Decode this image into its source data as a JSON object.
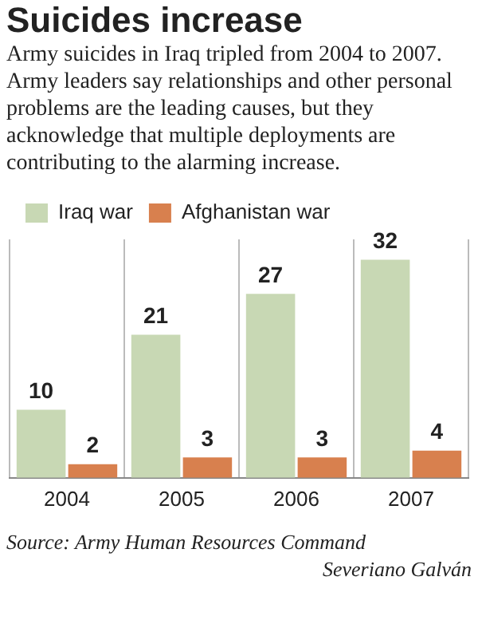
{
  "chart_data": {
    "type": "bar",
    "title": "Suicides increase",
    "subtitle": "Army suicides in Iraq tripled from 2004 to 2007. Army leaders say relationships and other personal problems are the leading causes, but they acknowledge that multiple deployments are contributing to the alarming increase.",
    "categories": [
      "2004",
      "2005",
      "2006",
      "2007"
    ],
    "series": [
      {
        "name": "Iraq war",
        "color": "#c8d8b4",
        "values": [
          10,
          21,
          27,
          32
        ]
      },
      {
        "name": "Afghanistan war",
        "color": "#d8804e",
        "values": [
          2,
          3,
          3,
          4
        ]
      }
    ],
    "data_labels": true,
    "legend": "top left",
    "grid": "x",
    "tick_labels": "x",
    "annotations": [
      "Source: Army Human Resources Command",
      "Severiano Galván"
    ]
  }
}
